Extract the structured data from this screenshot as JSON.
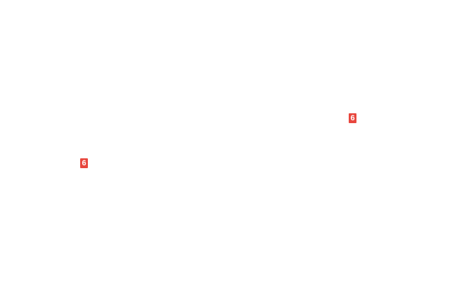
{
  "canvas": {
    "background": "#ffffff"
  },
  "callouts": {
    "badge_color": "#e8473e",
    "text_color": "#ffffff",
    "items": [
      {
        "label": "6"
      },
      {
        "label": "6"
      }
    ]
  }
}
